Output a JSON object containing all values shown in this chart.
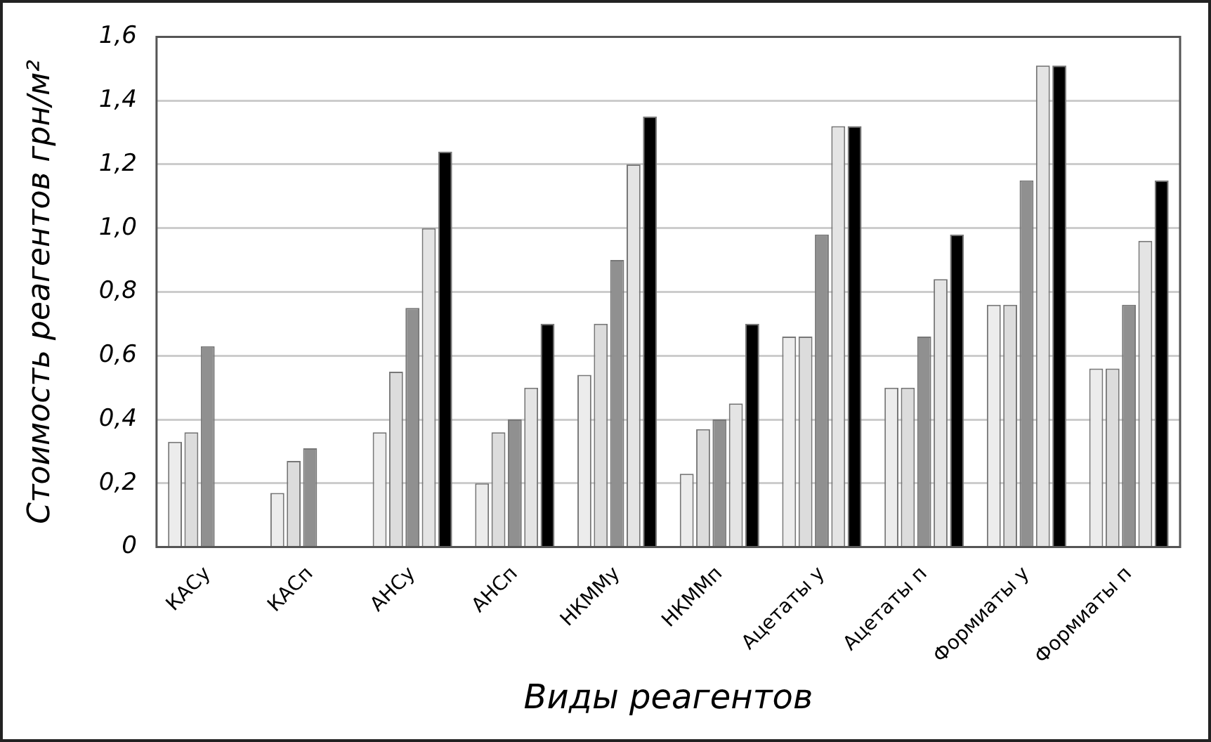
{
  "chart_data": {
    "type": "bar",
    "xlabel": "Виды реагентов",
    "ylabel": "Стоимость реагентов грн/м²",
    "categories": [
      "КАСу",
      "КАСп",
      "АНСу",
      "АНСп",
      "НКММу",
      "НКММп",
      "Ацетаты у",
      "Ацетаты п",
      "Формиаты у",
      "Формиаты п"
    ],
    "series": [
      {
        "color": "#ececec",
        "values": [
          0.33,
          0.17,
          0.36,
          0.2,
          0.54,
          0.23,
          0.66,
          0.5,
          0.76,
          0.56
        ]
      },
      {
        "color": "#dcdcdc",
        "values": [
          0.36,
          0.27,
          0.55,
          0.36,
          0.7,
          0.37,
          0.66,
          0.5,
          0.76,
          0.56
        ]
      },
      {
        "color": "#909090",
        "values": [
          0.63,
          0.31,
          0.75,
          0.4,
          0.9,
          0.4,
          0.98,
          0.66,
          1.15,
          0.76
        ]
      },
      {
        "color": "#e4e4e4",
        "values": [
          null,
          null,
          1.0,
          0.5,
          1.2,
          0.45,
          1.32,
          0.84,
          1.51,
          0.96
        ]
      },
      {
        "color": "#000000",
        "values": [
          null,
          null,
          1.24,
          0.7,
          1.35,
          0.7,
          1.32,
          0.98,
          1.51,
          1.15
        ]
      }
    ],
    "ylim": [
      0,
      1.6
    ],
    "yticks": [
      0,
      {
        "value": 0.2,
        "label": "0,2"
      },
      {
        "value": 0.4,
        "label": "0,4"
      },
      {
        "value": 0.6,
        "label": "0,6"
      },
      {
        "value": 0.8,
        "label": "0,8"
      },
      {
        "value": 1.0,
        "label": "1,0"
      },
      {
        "value": 1.2,
        "label": "1,2"
      },
      {
        "value": 1.4,
        "label": "1,4"
      },
      {
        "value": 1.6,
        "label": "1,6"
      }
    ],
    "grid": "y",
    "legend": false
  }
}
